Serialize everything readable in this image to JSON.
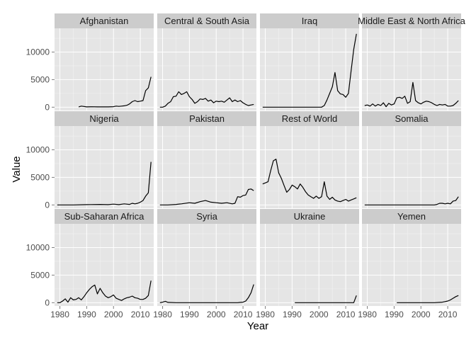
{
  "chart_data": {
    "type": "line",
    "layout": "facet-grid",
    "xlabel": "Year",
    "ylabel": "Value",
    "xlim": [
      1978,
      2015
    ],
    "ylim": [
      -600,
      14300
    ],
    "x_ticks": [
      1980,
      1990,
      2000,
      2010
    ],
    "y_ticks": [
      0,
      5000,
      10000
    ],
    "grid": true,
    "panels": [
      {
        "title": "Afghanistan",
        "x": [
          1987,
          1988,
          1990,
          1992,
          1994,
          1996,
          1998,
          2000,
          2001,
          2002,
          2003,
          2004,
          2005,
          2006,
          2007,
          2008,
          2009,
          2010,
          2011,
          2012,
          2013,
          2014
        ],
        "y": [
          50,
          200,
          50,
          80,
          60,
          60,
          60,
          100,
          200,
          150,
          200,
          250,
          350,
          600,
          1000,
          1200,
          1000,
          1100,
          1200,
          3000,
          3500,
          5500
        ]
      },
      {
        "title": "Central & South Asia",
        "x": [
          1979,
          1980,
          1981,
          1982,
          1983,
          1984,
          1985,
          1986,
          1987,
          1988,
          1989,
          1990,
          1991,
          1992,
          1993,
          1994,
          1995,
          1996,
          1997,
          1998,
          1999,
          2000,
          2001,
          2002,
          2003,
          2004,
          2005,
          2006,
          2007,
          2008,
          2009,
          2010,
          2011,
          2012,
          2013,
          2014
        ],
        "y": [
          0,
          0,
          200,
          700,
          1000,
          1900,
          2000,
          2800,
          2300,
          2500,
          2800,
          1900,
          1400,
          700,
          1000,
          1500,
          1400,
          1600,
          1100,
          1300,
          800,
          1100,
          1000,
          1100,
          900,
          1300,
          1700,
          1000,
          1300,
          1000,
          1200,
          800,
          500,
          300,
          400,
          500
        ]
      },
      {
        "title": "Iraq",
        "x": [
          1979,
          1985,
          1990,
          1995,
          2000,
          2001,
          2002,
          2003,
          2004,
          2005,
          2006,
          2007,
          2008,
          2009,
          2010,
          2011,
          2012,
          2013,
          2014
        ],
        "y": [
          0,
          0,
          0,
          0,
          0,
          0,
          300,
          1300,
          2500,
          3700,
          6300,
          3000,
          2400,
          2300,
          1800,
          2500,
          6500,
          10500,
          13300
        ]
      },
      {
        "title": "Middle East & North Africa",
        "x": [
          1979,
          1980,
          1981,
          1982,
          1983,
          1984,
          1985,
          1986,
          1987,
          1988,
          1989,
          1990,
          1991,
          1992,
          1993,
          1994,
          1995,
          1996,
          1997,
          1998,
          1999,
          2000,
          2001,
          2002,
          2003,
          2004,
          2005,
          2006,
          2007,
          2008,
          2009,
          2010,
          2011,
          2012,
          2013,
          2014
        ],
        "y": [
          300,
          400,
          200,
          600,
          200,
          500,
          300,
          800,
          100,
          700,
          400,
          600,
          1700,
          1800,
          1600,
          2000,
          700,
          1000,
          4500,
          1200,
          800,
          600,
          900,
          1100,
          1000,
          800,
          500,
          300,
          500,
          400,
          500,
          200,
          200,
          300,
          700,
          1200
        ]
      },
      {
        "title": "Nigeria",
        "x": [
          1979,
          1985,
          1990,
          1995,
          1998,
          2000,
          2002,
          2004,
          2006,
          2007,
          2008,
          2009,
          2010,
          2011,
          2012,
          2013,
          2014
        ],
        "y": [
          0,
          0,
          50,
          100,
          50,
          150,
          50,
          200,
          100,
          300,
          200,
          300,
          500,
          800,
          1600,
          2200,
          7800
        ]
      },
      {
        "title": "Pakistan",
        "x": [
          1979,
          1982,
          1985,
          1987,
          1990,
          1992,
          1994,
          1996,
          1998,
          2000,
          2002,
          2004,
          2006,
          2007,
          2008,
          2009,
          2010,
          2011,
          2012,
          2013,
          2014
        ],
        "y": [
          0,
          0,
          100,
          200,
          400,
          300,
          600,
          800,
          500,
          400,
          300,
          400,
          200,
          300,
          1500,
          1400,
          1700,
          1800,
          2800,
          2900,
          2600
        ]
      },
      {
        "title": "Rest of World",
        "x": [
          1979,
          1980,
          1981,
          1982,
          1983,
          1984,
          1985,
          1986,
          1987,
          1988,
          1989,
          1990,
          1991,
          1992,
          1993,
          1994,
          1995,
          1996,
          1997,
          1998,
          1999,
          2000,
          2001,
          2002,
          2003,
          2004,
          2005,
          2006,
          2007,
          2008,
          2009,
          2010,
          2011,
          2012,
          2013,
          2014
        ],
        "y": [
          3800,
          4000,
          4200,
          6200,
          8000,
          8300,
          5800,
          4800,
          3500,
          2300,
          2800,
          3600,
          3300,
          2900,
          3800,
          3200,
          2400,
          1800,
          1500,
          1200,
          1600,
          1200,
          1500,
          4200,
          1600,
          1000,
          1400,
          900,
          700,
          600,
          800,
          1000,
          700,
          900,
          1100,
          1300
        ]
      },
      {
        "title": "Somalia",
        "x": [
          1979,
          1985,
          1990,
          1995,
          2000,
          2005,
          2006,
          2007,
          2008,
          2009,
          2010,
          2011,
          2012,
          2013,
          2014
        ],
        "y": [
          0,
          0,
          0,
          0,
          0,
          0,
          100,
          300,
          300,
          200,
          300,
          200,
          700,
          800,
          1500
        ]
      },
      {
        "title": "Sub-Saharan Africa",
        "x": [
          1979,
          1980,
          1981,
          1982,
          1983,
          1984,
          1985,
          1986,
          1987,
          1988,
          1989,
          1990,
          1991,
          1992,
          1993,
          1994,
          1995,
          1996,
          1997,
          1998,
          1999,
          2000,
          2001,
          2002,
          2003,
          2004,
          2005,
          2006,
          2007,
          2008,
          2009,
          2010,
          2011,
          2012,
          2013,
          2014
        ],
        "y": [
          0,
          0,
          300,
          700,
          100,
          900,
          500,
          600,
          900,
          500,
          1100,
          1800,
          2400,
          2900,
          3200,
          1600,
          2600,
          1800,
          1200,
          900,
          1100,
          1400,
          800,
          600,
          400,
          700,
          900,
          1000,
          1200,
          900,
          800,
          600,
          600,
          800,
          1300,
          4000
        ]
      },
      {
        "title": "Syria",
        "x": [
          1979,
          1980,
          1981,
          1982,
          1985,
          1990,
          1995,
          2000,
          2005,
          2008,
          2009,
          2010,
          2011,
          2012,
          2013,
          2014
        ],
        "y": [
          0,
          100,
          250,
          50,
          0,
          0,
          0,
          0,
          0,
          0,
          50,
          100,
          300,
          900,
          1800,
          3300
        ]
      },
      {
        "title": "Ukraine",
        "x": [
          1991,
          1995,
          2000,
          2005,
          2010,
          2013,
          2014
        ],
        "y": [
          0,
          0,
          0,
          0,
          0,
          0,
          1300
        ]
      },
      {
        "title": "Yemen",
        "x": [
          1991,
          1995,
          2000,
          2005,
          2008,
          2009,
          2010,
          2011,
          2012,
          2013,
          2014
        ],
        "y": [
          0,
          0,
          0,
          0,
          100,
          200,
          300,
          500,
          800,
          1100,
          1300
        ]
      }
    ]
  }
}
